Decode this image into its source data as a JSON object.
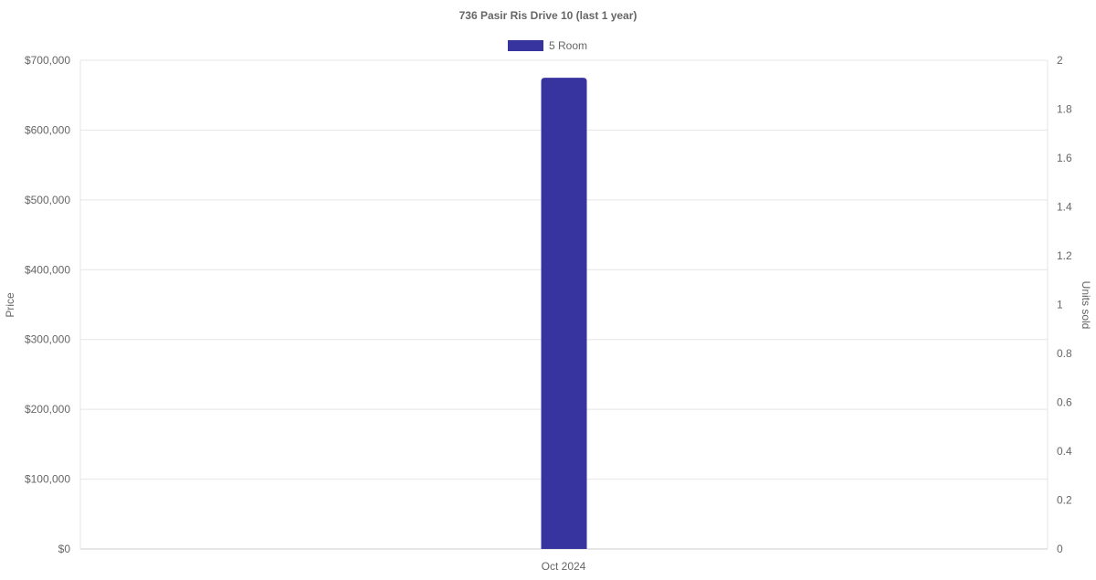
{
  "chart_data": {
    "type": "bar",
    "title": "736 Pasir Ris Drive 10 (last 1 year)",
    "categories": [
      "Oct 2024"
    ],
    "series": [
      {
        "name": "5 Room",
        "values": [
          675000
        ],
        "color": "#3734a0"
      }
    ],
    "ylabel": "Price",
    "y2label": "Units sold",
    "ylim": [
      0,
      700000
    ],
    "y2lim": [
      0,
      2
    ],
    "yticks": [
      "$0",
      "$100,000",
      "$200,000",
      "$300,000",
      "$400,000",
      "$500,000",
      "$600,000",
      "$700,000"
    ],
    "y2ticks": [
      "0",
      "0.2",
      "0.4",
      "0.6",
      "0.8",
      "1",
      "1.2",
      "1.4",
      "1.6",
      "1.8",
      "2"
    ],
    "grid": true,
    "legend": "top"
  }
}
